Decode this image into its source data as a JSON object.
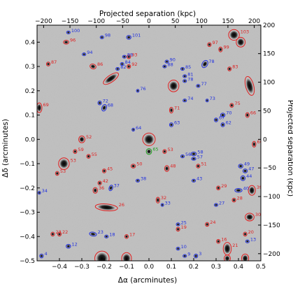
{
  "chart_data": {
    "type": "image",
    "xlabel": "Δα (arcminutes)",
    "ylabel": "Δδ (arcminutes)",
    "top_label": "Projected separation (kpc)",
    "right_label": "Projected separation (kpc)",
    "xlim": [
      -0.5,
      0.5
    ],
    "ylim": [
      -0.5,
      0.47
    ],
    "x_ticks": [
      -0.4,
      -0.3,
      -0.2,
      -0.1,
      0.0,
      0.1,
      0.2,
      0.3,
      0.4,
      0.5
    ],
    "x_tick_labels": [
      "−0.4",
      "−0.3",
      "−0.2",
      "−0.1",
      "0.0",
      "0.1",
      "0.2",
      "0.3",
      "0.4",
      "0.5"
    ],
    "y_ticks": [
      -0.5,
      -0.4,
      -0.3,
      -0.2,
      -0.1,
      0.0,
      0.1,
      0.2,
      0.3,
      0.4
    ],
    "y_tick_labels": [
      "−0.5",
      "−0.4",
      "−0.3",
      "−0.2",
      "−0.1",
      "0.0",
      "0.1",
      "0.2",
      "0.3",
      "0.4"
    ],
    "top_ticks": [
      -200,
      -150,
      -100,
      -50,
      0,
      50,
      100,
      150,
      200
    ],
    "top_tick_labels": [
      "−200",
      "−150",
      "−100",
      "−50",
      "0",
      "50",
      "100",
      "150",
      "200"
    ],
    "right_ticks": [
      -200,
      -150,
      -100,
      -50,
      0,
      50,
      100,
      150,
      200
    ],
    "right_tick_labels": [
      "−200",
      "−150",
      "−100",
      "−50",
      "0",
      "50",
      "100",
      "150",
      "200"
    ],
    "kpc_per_arcmin": 425,
    "colors": {
      "red": "#e02020",
      "blue": "#2030e0",
      "green": "#20a020",
      "sky": "#bdbdbd"
    },
    "sources": [
      {
        "x": 0.0,
        "y": 0.0,
        "a": 0.028,
        "b": 0.026,
        "ang": 0,
        "c": "red",
        "lbl": ""
      },
      {
        "x": 0.0,
        "y": -0.05,
        "a": 0.012,
        "b": 0.012,
        "ang": 0,
        "c": "green",
        "lbl": "65"
      },
      {
        "x": -0.38,
        "y": -0.1,
        "a": 0.024,
        "b": 0.024,
        "ang": 0,
        "c": "red",
        "lbl": "53"
      },
      {
        "x": 0.11,
        "y": 0.22,
        "a": 0.024,
        "b": 0.024,
        "ang": 0,
        "c": "red",
        "lbl": ""
      },
      {
        "x": 0.38,
        "y": 0.43,
        "a": 0.024,
        "b": 0.022,
        "ang": 0,
        "c": "red",
        "lbl": "103"
      },
      {
        "x": 0.41,
        "y": 0.4,
        "a": 0.02,
        "b": 0.02,
        "ang": 0,
        "c": "red",
        "lbl": ""
      },
      {
        "x": -0.21,
        "y": -0.49,
        "a": 0.032,
        "b": 0.03,
        "ang": 0,
        "c": "red",
        "lbl": ""
      },
      {
        "x": -0.1,
        "y": -0.49,
        "a": 0.022,
        "b": 0.024,
        "ang": 0,
        "c": "red",
        "lbl": ""
      },
      {
        "x": 0.45,
        "y": 0.22,
        "a": 0.018,
        "b": 0.04,
        "ang": -15,
        "c": "red",
        "lbl": ""
      },
      {
        "x": -0.19,
        "y": -0.28,
        "a": 0.05,
        "b": 0.014,
        "ang": 5,
        "c": "red",
        "lbl": "26"
      },
      {
        "x": -0.17,
        "y": 0.25,
        "a": 0.04,
        "b": 0.014,
        "ang": -35,
        "c": "red",
        "lbl": ""
      },
      {
        "x": -0.3,
        "y": 0.0,
        "a": 0.014,
        "b": 0.014,
        "ang": 0,
        "c": "red",
        "lbl": "52"
      },
      {
        "x": 0.46,
        "y": -0.21,
        "a": 0.016,
        "b": 0.02,
        "ang": 0,
        "c": "red",
        "lbl": "39"
      },
      {
        "x": 0.45,
        "y": -0.32,
        "a": 0.02,
        "b": 0.016,
        "ang": 0,
        "c": "red",
        "lbl": "30"
      },
      {
        "x": 0.43,
        "y": -0.49,
        "a": 0.016,
        "b": 0.018,
        "ang": 0,
        "c": "red",
        "lbl": ""
      },
      {
        "x": 0.35,
        "y": -0.45,
        "a": 0.018,
        "b": 0.026,
        "ang": 0,
        "c": "red",
        "lbl": "21"
      },
      {
        "x": 0.35,
        "y": -0.49,
        "a": 0.014,
        "b": 0.014,
        "ang": 0,
        "c": "red",
        "lbl": ""
      },
      {
        "x": -0.49,
        "y": 0.13,
        "a": 0.012,
        "b": 0.02,
        "ang": 0,
        "c": "red",
        "lbl": "69"
      },
      {
        "x": -0.37,
        "y": 0.4,
        "a": 0.012,
        "b": 0.008,
        "ang": 0,
        "c": "red",
        "lbl": "96"
      },
      {
        "x": -0.45,
        "y": 0.31,
        "a": 0.008,
        "b": 0.008,
        "ang": 0,
        "c": "red",
        "lbl": "87"
      },
      {
        "x": -0.25,
        "y": 0.3,
        "a": 0.014,
        "b": 0.01,
        "ang": 20,
        "c": "red",
        "lbl": "86"
      },
      {
        "x": -0.09,
        "y": 0.34,
        "a": 0.008,
        "b": 0.008,
        "ang": 0,
        "c": "red",
        "lbl": "93"
      },
      {
        "x": -0.09,
        "y": 0.3,
        "a": 0.008,
        "b": 0.008,
        "ang": 0,
        "c": "red",
        "lbl": "92"
      },
      {
        "x": 0.1,
        "y": 0.12,
        "a": 0.008,
        "b": 0.012,
        "ang": 0,
        "c": "red",
        "lbl": "71"
      },
      {
        "x": 0.32,
        "y": 0.37,
        "a": 0.008,
        "b": 0.01,
        "ang": 0,
        "c": "red",
        "lbl": "99"
      },
      {
        "x": 0.27,
        "y": 0.39,
        "a": 0.008,
        "b": 0.008,
        "ang": 0,
        "c": "red",
        "lbl": "97"
      },
      {
        "x": 0.36,
        "y": 0.29,
        "a": 0.008,
        "b": 0.008,
        "ang": 0,
        "c": "red",
        "lbl": "83"
      },
      {
        "x": 0.44,
        "y": 0.1,
        "a": 0.008,
        "b": 0.01,
        "ang": 0,
        "c": "red",
        "lbl": "66"
      },
      {
        "x": 0.37,
        "y": 0.14,
        "a": 0.008,
        "b": 0.008,
        "ang": 0,
        "c": "red",
        "lbl": "75"
      },
      {
        "x": 0.47,
        "y": -0.02,
        "a": 0.008,
        "b": 0.012,
        "ang": 0,
        "c": "red",
        "lbl": "60"
      },
      {
        "x": -0.33,
        "y": -0.05,
        "a": 0.008,
        "b": 0.008,
        "ang": 0,
        "c": "red",
        "lbl": "59"
      },
      {
        "x": -0.27,
        "y": -0.07,
        "a": 0.008,
        "b": 0.008,
        "ang": 0,
        "c": "red",
        "lbl": "55"
      },
      {
        "x": -0.2,
        "y": -0.13,
        "a": 0.008,
        "b": 0.008,
        "ang": 0,
        "c": "red",
        "lbl": "45"
      },
      {
        "x": -0.22,
        "y": -0.18,
        "a": 0.008,
        "b": 0.008,
        "ang": 0,
        "c": "red",
        "lbl": "42"
      },
      {
        "x": -0.24,
        "y": -0.21,
        "a": 0.01,
        "b": 0.012,
        "ang": 0,
        "c": "red",
        "lbl": "36"
      },
      {
        "x": -0.07,
        "y": -0.11,
        "a": 0.01,
        "b": 0.008,
        "ang": 0,
        "c": "red",
        "lbl": "50"
      },
      {
        "x": 0.08,
        "y": -0.12,
        "a": 0.01,
        "b": 0.012,
        "ang": 0,
        "c": "red",
        "lbl": "48"
      },
      {
        "x": 0.07,
        "y": -0.05,
        "a": 0.008,
        "b": 0.008,
        "ang": 0,
        "c": "red",
        "lbl": "53"
      },
      {
        "x": 0.22,
        "y": -0.11,
        "a": 0.008,
        "b": 0.008,
        "ang": 0,
        "c": "red",
        "lbl": "51"
      },
      {
        "x": 0.31,
        "y": -0.2,
        "a": 0.008,
        "b": 0.008,
        "ang": 0,
        "c": "red",
        "lbl": "29"
      },
      {
        "x": 0.38,
        "y": -0.25,
        "a": 0.008,
        "b": 0.008,
        "ang": 0,
        "c": "red",
        "lbl": "28"
      },
      {
        "x": 0.04,
        "y": -0.25,
        "a": 0.008,
        "b": 0.012,
        "ang": 0,
        "c": "red",
        "lbl": "32"
      },
      {
        "x": 0.13,
        "y": -0.37,
        "a": 0.008,
        "b": 0.008,
        "ang": 0,
        "c": "red",
        "lbl": "19"
      },
      {
        "x": 0.26,
        "y": -0.35,
        "a": 0.008,
        "b": 0.008,
        "ang": 0,
        "c": "red",
        "lbl": "24"
      },
      {
        "x": 0.31,
        "y": -0.42,
        "a": 0.008,
        "b": 0.008,
        "ang": 0,
        "c": "red",
        "lbl": "16"
      },
      {
        "x": -0.1,
        "y": -0.4,
        "a": 0.008,
        "b": 0.008,
        "ang": 0,
        "c": "red",
        "lbl": "17"
      },
      {
        "x": -0.4,
        "y": -0.39,
        "a": 0.008,
        "b": 0.008,
        "ang": 0,
        "c": "red",
        "lbl": "22"
      },
      {
        "x": -0.43,
        "y": -0.39,
        "a": 0.008,
        "b": 0.008,
        "ang": 0,
        "c": "red",
        "lbl": "23"
      },
      {
        "x": 0.43,
        "y": -0.39,
        "a": 0.008,
        "b": 0.008,
        "ang": 0,
        "c": "red",
        "lbl": "20"
      },
      {
        "x": -0.41,
        "y": -0.14,
        "a": 0.008,
        "b": 0.008,
        "ang": 0,
        "c": "red",
        "lbl": "53"
      },
      {
        "x": -0.09,
        "y": 0.42,
        "a": 0.01,
        "b": 0.008,
        "ang": 0,
        "c": "blue",
        "lbl": "101"
      },
      {
        "x": -0.21,
        "y": 0.42,
        "a": 0.008,
        "b": 0.006,
        "ang": 0,
        "c": "blue",
        "lbl": "98"
      },
      {
        "x": -0.36,
        "y": 0.44,
        "a": 0.008,
        "b": 0.006,
        "ang": 0,
        "c": "blue",
        "lbl": "100"
      },
      {
        "x": -0.29,
        "y": 0.35,
        "a": 0.008,
        "b": 0.006,
        "ang": 0,
        "c": "blue",
        "lbl": "94"
      },
      {
        "x": -0.11,
        "y": 0.34,
        "a": 0.008,
        "b": 0.006,
        "ang": 0,
        "c": "blue",
        "lbl": "89"
      },
      {
        "x": -0.12,
        "y": 0.31,
        "a": 0.008,
        "b": 0.006,
        "ang": 0,
        "c": "blue",
        "lbl": "84"
      },
      {
        "x": -0.14,
        "y": 0.29,
        "a": 0.008,
        "b": 0.006,
        "ang": 0,
        "c": "blue",
        "lbl": "82"
      },
      {
        "x": 0.08,
        "y": 0.32,
        "a": 0.008,
        "b": 0.006,
        "ang": 0,
        "c": "blue",
        "lbl": "90"
      },
      {
        "x": 0.07,
        "y": 0.3,
        "a": 0.008,
        "b": 0.006,
        "ang": 0,
        "c": "blue",
        "lbl": "88"
      },
      {
        "x": 0.25,
        "y": 0.31,
        "a": 0.012,
        "b": 0.016,
        "ang": 30,
        "c": "blue",
        "lbl": "78"
      },
      {
        "x": 0.15,
        "y": 0.29,
        "a": 0.008,
        "b": 0.006,
        "ang": 0,
        "c": "blue",
        "lbl": "85"
      },
      {
        "x": 0.16,
        "y": 0.26,
        "a": 0.008,
        "b": 0.006,
        "ang": 0,
        "c": "blue",
        "lbl": "81"
      },
      {
        "x": 0.16,
        "y": 0.24,
        "a": 0.008,
        "b": 0.006,
        "ang": 0,
        "c": "blue",
        "lbl": "78"
      },
      {
        "x": 0.22,
        "y": 0.22,
        "a": 0.008,
        "b": 0.006,
        "ang": 0,
        "c": "blue",
        "lbl": "77"
      },
      {
        "x": -0.05,
        "y": 0.2,
        "a": 0.006,
        "b": 0.006,
        "ang": 0,
        "c": "blue",
        "lbl": "76"
      },
      {
        "x": 0.16,
        "y": 0.16,
        "a": 0.008,
        "b": 0.006,
        "ang": 0,
        "c": "blue",
        "lbl": "74"
      },
      {
        "x": 0.26,
        "y": 0.16,
        "a": 0.006,
        "b": 0.006,
        "ang": 0,
        "c": "blue",
        "lbl": "73"
      },
      {
        "x": -0.22,
        "y": 0.15,
        "a": 0.008,
        "b": 0.008,
        "ang": 0,
        "c": "blue",
        "lbl": "72"
      },
      {
        "x": -0.2,
        "y": 0.13,
        "a": 0.01,
        "b": 0.014,
        "ang": 20,
        "c": "blue",
        "lbl": "68"
      },
      {
        "x": 0.33,
        "y": 0.1,
        "a": 0.01,
        "b": 0.008,
        "ang": 0,
        "c": "blue",
        "lbl": "70"
      },
      {
        "x": 0.3,
        "y": 0.08,
        "a": 0.008,
        "b": 0.008,
        "ang": 0,
        "c": "blue",
        "lbl": "67"
      },
      {
        "x": 0.33,
        "y": 0.06,
        "a": 0.008,
        "b": 0.008,
        "ang": 0,
        "c": "blue",
        "lbl": "62"
      },
      {
        "x": -0.07,
        "y": 0.04,
        "a": 0.006,
        "b": 0.006,
        "ang": 0,
        "c": "blue",
        "lbl": "64"
      },
      {
        "x": 0.1,
        "y": 0.06,
        "a": 0.008,
        "b": 0.008,
        "ang": 0,
        "c": "blue",
        "lbl": "63"
      },
      {
        "x": 0.15,
        "y": -0.07,
        "a": 0.008,
        "b": 0.006,
        "ang": 0,
        "c": "blue",
        "lbl": "56"
      },
      {
        "x": 0.2,
        "y": -0.06,
        "a": 0.012,
        "b": 0.008,
        "ang": 0,
        "c": "blue",
        "lbl": "58"
      },
      {
        "x": 0.2,
        "y": -0.08,
        "a": 0.01,
        "b": 0.006,
        "ang": 0,
        "c": "blue",
        "lbl": "57"
      },
      {
        "x": 0.41,
        "y": -0.11,
        "a": 0.01,
        "b": 0.008,
        "ang": 0,
        "c": "blue",
        "lbl": "49"
      },
      {
        "x": 0.43,
        "y": -0.13,
        "a": 0.01,
        "b": 0.008,
        "ang": 0,
        "c": "blue",
        "lbl": "47"
      },
      {
        "x": 0.42,
        "y": -0.16,
        "a": 0.01,
        "b": 0.01,
        "ang": 0,
        "c": "blue",
        "lbl": "44"
      },
      {
        "x": 0.4,
        "y": -0.21,
        "a": 0.016,
        "b": 0.008,
        "ang": 0,
        "c": "blue",
        "lbl": "40"
      },
      {
        "x": 0.2,
        "y": -0.17,
        "a": 0.008,
        "b": 0.006,
        "ang": 0,
        "c": "blue",
        "lbl": "43"
      },
      {
        "x": -0.05,
        "y": -0.17,
        "a": 0.008,
        "b": 0.006,
        "ang": 0,
        "c": "blue",
        "lbl": "38"
      },
      {
        "x": -0.17,
        "y": -0.2,
        "a": 0.008,
        "b": 0.012,
        "ang": 20,
        "c": "blue",
        "lbl": "37"
      },
      {
        "x": 0.06,
        "y": -0.27,
        "a": 0.006,
        "b": 0.006,
        "ang": 0,
        "c": "blue",
        "lbl": "33"
      },
      {
        "x": -0.49,
        "y": -0.22,
        "a": 0.006,
        "b": 0.006,
        "ang": 0,
        "c": "blue",
        "lbl": "34"
      },
      {
        "x": 0.3,
        "y": -0.27,
        "a": 0.008,
        "b": 0.006,
        "ang": 0,
        "c": "blue",
        "lbl": "27"
      },
      {
        "x": 0.13,
        "y": -0.35,
        "a": 0.008,
        "b": 0.006,
        "ang": 0,
        "c": "blue",
        "lbl": "25"
      },
      {
        "x": -0.25,
        "y": -0.39,
        "a": 0.016,
        "b": 0.008,
        "ang": 10,
        "c": "blue",
        "lbl": "23"
      },
      {
        "x": -0.19,
        "y": -0.4,
        "a": 0.008,
        "b": 0.006,
        "ang": 0,
        "c": "blue",
        "lbl": "18"
      },
      {
        "x": -0.36,
        "y": -0.44,
        "a": 0.01,
        "b": 0.008,
        "ang": 0,
        "c": "blue",
        "lbl": "12"
      },
      {
        "x": -0.48,
        "y": -0.48,
        "a": 0.008,
        "b": 0.008,
        "ang": 0,
        "c": "blue",
        "lbl": "4"
      },
      {
        "x": 0.13,
        "y": -0.45,
        "a": 0.008,
        "b": 0.006,
        "ang": 0,
        "c": "blue",
        "lbl": "10"
      },
      {
        "x": 0.21,
        "y": -0.48,
        "a": 0.008,
        "b": 0.008,
        "ang": 0,
        "c": "blue",
        "lbl": "3"
      },
      {
        "x": 0.16,
        "y": -0.48,
        "a": 0.008,
        "b": 0.006,
        "ang": 0,
        "c": "blue",
        "lbl": "9"
      },
      {
        "x": 0.44,
        "y": -0.42,
        "a": 0.008,
        "b": 0.006,
        "ang": 0,
        "c": "blue",
        "lbl": "13"
      }
    ]
  }
}
